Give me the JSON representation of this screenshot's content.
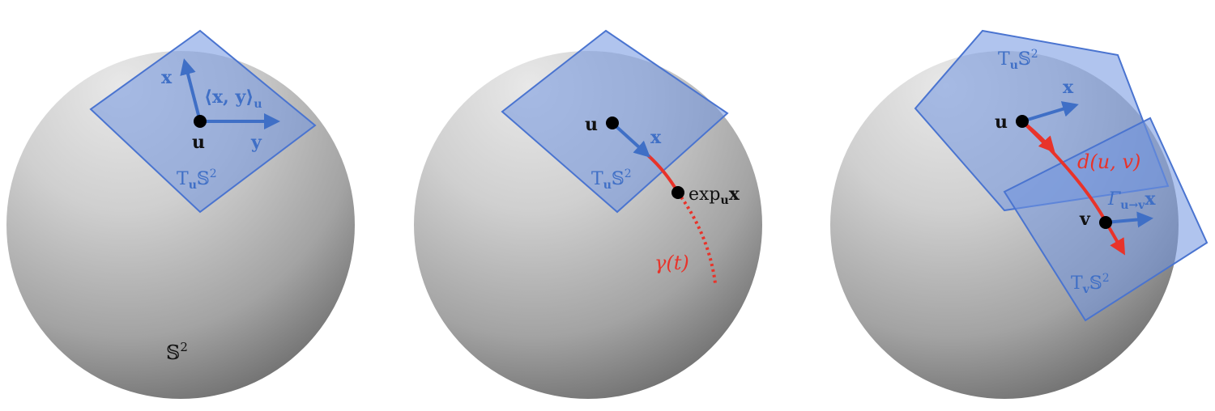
{
  "colors": {
    "plane_fill": "#6f93e0",
    "plane_stroke": "#4a74d0",
    "vector": "#3f6fc6",
    "curve": "#e8332a",
    "point": "#000000",
    "sphere_light": "#e6e6e6",
    "sphere_dark": "#6a6a6a"
  },
  "panels": [
    {
      "point_label": "u",
      "vector_x_label": "x",
      "vector_y_label": "y",
      "inner_product_label": "⟨x, y⟩",
      "inner_product_subscript": "u",
      "tangent_label": "T",
      "tangent_subscript": "u",
      "tangent_space": "𝕊",
      "tangent_sup": "2",
      "sphere_label": "𝕊",
      "sphere_sup": "2"
    },
    {
      "point_label": "u",
      "vector_x_label": "x",
      "tangent_label": "T",
      "tangent_subscript": "u",
      "tangent_space": "𝕊",
      "tangent_sup": "2",
      "exp_label": "exp",
      "exp_subscript": "u",
      "exp_arg": "x",
      "geodesic_label": "γ(t)"
    },
    {
      "point_u_label": "u",
      "point_v_label": "v",
      "vector_x_label": "x",
      "tangent_u_label": "T",
      "tangent_u_subscript": "u",
      "tangent_u_space": "𝕊",
      "tangent_u_sup": "2",
      "tangent_v_label": "T",
      "tangent_v_subscript": "v",
      "tangent_v_space": "𝕊",
      "tangent_v_sup": "2",
      "distance_label": "d(u, v)",
      "transport_label": "Γ",
      "transport_subscript": "u→v",
      "transport_arg": "x"
    }
  ]
}
